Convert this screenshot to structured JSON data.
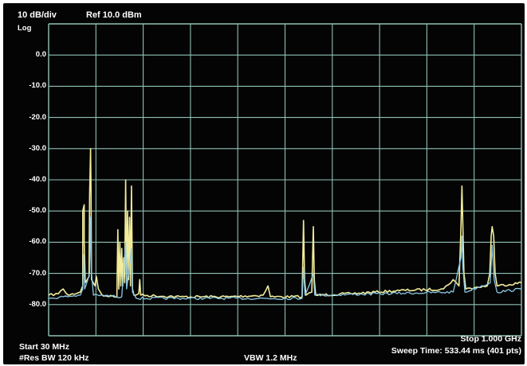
{
  "header": {
    "scale": "10 dB/div",
    "ref": "Ref 10.0 dBm",
    "mode": "Log"
  },
  "footer": {
    "start": "Start 30 MHz",
    "rbw": "#Res BW 120 kHz",
    "vbw": "VBW 1.2 MHz",
    "stop": "Stop 1.000 GHz",
    "sweep": "Sweep Time: 533.44 ms (401 pts)"
  },
  "colors": {
    "background": "#040404",
    "grid": "#8fc1b5",
    "trace_yellow": "#f2ec9a",
    "trace_blue": "#8cc9e6"
  },
  "chart_data": {
    "type": "line",
    "x_unit": "MHz",
    "y_unit": "dBm",
    "xlim": [
      30,
      1000
    ],
    "ylim": [
      -90,
      10
    ],
    "y_ticks": [
      "0.0",
      "-10.0",
      "-20.0",
      "-30.0",
      "-40.0",
      "-50.0",
      "-60.0",
      "-70.0",
      "-80.0"
    ],
    "noise_floor": -77.5,
    "series": [
      {
        "color": "yellow",
        "points": [
          [
            30,
            -77
          ],
          [
            50,
            -76.5
          ],
          [
            60,
            -75
          ],
          [
            70,
            -77
          ],
          [
            95,
            -76
          ],
          [
            100,
            -74
          ],
          [
            100,
            -50
          ],
          [
            103,
            -48
          ],
          [
            103,
            -60
          ],
          [
            105,
            -73
          ],
          [
            113,
            -71
          ],
          [
            114,
            -45
          ],
          [
            116,
            -30
          ],
          [
            117,
            -44
          ],
          [
            118,
            -72
          ],
          [
            125,
            -74
          ],
          [
            128,
            -71
          ],
          [
            132,
            -75
          ],
          [
            140,
            -77
          ],
          [
            170,
            -77.5
          ],
          [
            172,
            -56
          ],
          [
            174,
            -75
          ],
          [
            176,
            -60
          ],
          [
            178,
            -74
          ],
          [
            180,
            -62
          ],
          [
            182,
            -74
          ],
          [
            184,
            -65
          ],
          [
            186,
            -73
          ],
          [
            188,
            -40
          ],
          [
            190,
            -73
          ],
          [
            192,
            -50
          ],
          [
            194,
            -72
          ],
          [
            196,
            -52
          ],
          [
            198,
            -74
          ],
          [
            200,
            -42
          ],
          [
            202,
            -75
          ],
          [
            205,
            -77
          ],
          [
            215,
            -76.5
          ],
          [
            217,
            -72
          ],
          [
            219,
            -77
          ],
          [
            300,
            -77.5
          ],
          [
            400,
            -77.5
          ],
          [
            470,
            -77
          ],
          [
            480,
            -74
          ],
          [
            485,
            -77.5
          ],
          [
            550,
            -77.5
          ],
          [
            553,
            -53
          ],
          [
            555,
            -72
          ],
          [
            558,
            -77
          ],
          [
            570,
            -76
          ],
          [
            573,
            -55
          ],
          [
            575,
            -72
          ],
          [
            578,
            -77
          ],
          [
            650,
            -76.5
          ],
          [
            750,
            -75.5
          ],
          [
            840,
            -75
          ],
          [
            860,
            -72
          ],
          [
            872,
            -74
          ],
          [
            876,
            -55
          ],
          [
            878,
            -42
          ],
          [
            880,
            -55
          ],
          [
            882,
            -70
          ],
          [
            886,
            -75
          ],
          [
            930,
            -74
          ],
          [
            935,
            -70
          ],
          [
            938,
            -58
          ],
          [
            940,
            -55
          ],
          [
            943,
            -58
          ],
          [
            946,
            -70
          ],
          [
            950,
            -74
          ],
          [
            1000,
            -73
          ]
        ]
      },
      {
        "color": "blue",
        "points": [
          [
            30,
            -78
          ],
          [
            95,
            -77
          ],
          [
            100,
            -75
          ],
          [
            102,
            -64
          ],
          [
            104,
            -75
          ],
          [
            114,
            -70
          ],
          [
            116,
            -52
          ],
          [
            118,
            -70
          ],
          [
            122,
            -77
          ],
          [
            180,
            -77.5
          ],
          [
            188,
            -60
          ],
          [
            190,
            -75
          ],
          [
            200,
            -62
          ],
          [
            202,
            -76
          ],
          [
            210,
            -78
          ],
          [
            550,
            -78
          ],
          [
            553,
            -68
          ],
          [
            556,
            -77
          ],
          [
            573,
            -70
          ],
          [
            576,
            -77
          ],
          [
            860,
            -76
          ],
          [
            876,
            -65
          ],
          [
            878,
            -58
          ],
          [
            880,
            -68
          ],
          [
            884,
            -76
          ],
          [
            936,
            -73
          ],
          [
            940,
            -61
          ],
          [
            944,
            -72
          ],
          [
            950,
            -76
          ],
          [
            1000,
            -75
          ]
        ]
      }
    ]
  }
}
